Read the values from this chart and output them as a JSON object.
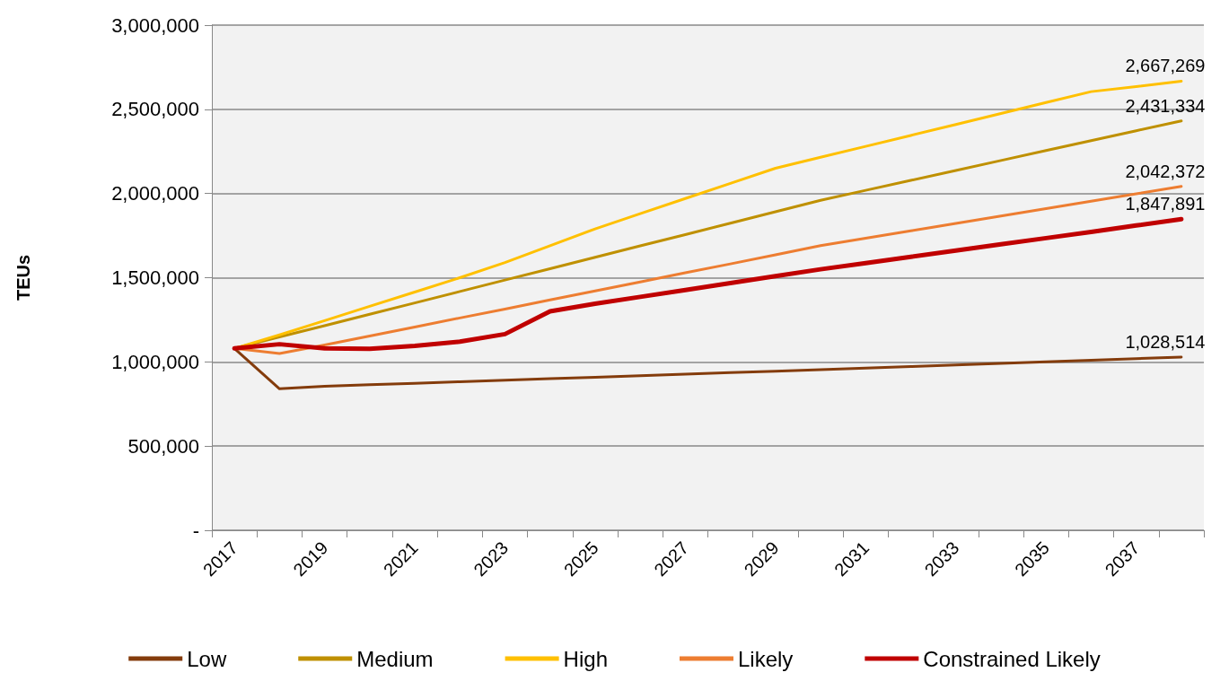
{
  "chart_data": {
    "type": "line",
    "ylabel": "TEUs",
    "categories": [
      "2017",
      null,
      "2019",
      null,
      "2021",
      null,
      "2023",
      null,
      "2025",
      null,
      "2027",
      null,
      "2029",
      null,
      "2031",
      null,
      "2033",
      null,
      "2035",
      null,
      "2037",
      null
    ],
    "series": [
      {
        "name": "Low",
        "color": "#843c0c",
        "values": [
          1080000,
          840000,
          855000,
          864000,
          873000,
          882000,
          891000,
          900000,
          909000,
          918000,
          927000,
          936000,
          945000,
          954000,
          963000,
          972000,
          982000,
          991000,
          1000000,
          1010000,
          1019000,
          1028514
        ],
        "value_labels": [
          null,
          null,
          null,
          null,
          null,
          null,
          null,
          null,
          null,
          null,
          null,
          null,
          null,
          null,
          null,
          null,
          null,
          null,
          null,
          null,
          null,
          "1,028,514"
        ]
      },
      {
        "name": "Medium",
        "color": "#bf9000",
        "values": [
          1080000,
          1148000,
          1215000,
          1283000,
          1350000,
          1418000,
          1486000,
          1553000,
          1621000,
          1689000,
          1756000,
          1824000,
          1892000,
          1960000,
          2019000,
          2078000,
          2137000,
          2196000,
          2255000,
          2314000,
          2373000,
          2431334
        ],
        "value_labels": [
          null,
          null,
          null,
          null,
          null,
          null,
          null,
          null,
          null,
          null,
          null,
          null,
          null,
          null,
          null,
          null,
          null,
          null,
          null,
          null,
          null,
          "2,431,334"
        ]
      },
      {
        "name": "High",
        "color": "#ffc000",
        "values": [
          1080000,
          1160000,
          1245000,
          1330000,
          1415000,
          1500000,
          1590000,
          1690000,
          1790000,
          1880000,
          1970000,
          2060000,
          2150000,
          2215000,
          2280000,
          2345000,
          2410000,
          2475000,
          2540000,
          2605000,
          2635000,
          2667269
        ],
        "value_labels": [
          null,
          null,
          null,
          null,
          null,
          null,
          null,
          null,
          null,
          null,
          null,
          null,
          null,
          null,
          null,
          null,
          null,
          null,
          null,
          null,
          null,
          "2,667,269"
        ]
      },
      {
        "name": "Likely",
        "color": "#ed7d31",
        "values": [
          1080000,
          1050000,
          1100000,
          1154000,
          1207000,
          1261000,
          1314000,
          1368000,
          1421000,
          1475000,
          1529000,
          1582000,
          1636000,
          1690000,
          1734000,
          1778000,
          1822000,
          1866000,
          1910000,
          1954000,
          1998000,
          2042372
        ],
        "value_labels": [
          null,
          null,
          null,
          null,
          null,
          null,
          null,
          null,
          null,
          null,
          null,
          null,
          null,
          null,
          null,
          null,
          null,
          null,
          null,
          null,
          null,
          "2,042,372"
        ]
      },
      {
        "name": "Constrained Likely",
        "color": "#c00000",
        "values": [
          1080000,
          1105000,
          1080000,
          1078000,
          1095000,
          1120000,
          1165000,
          1300000,
          1345000,
          1386000,
          1427000,
          1468000,
          1509000,
          1550000,
          1587000,
          1624000,
          1661000,
          1698000,
          1735000,
          1772000,
          1810000,
          1847891
        ],
        "value_labels": [
          null,
          null,
          null,
          null,
          null,
          null,
          null,
          null,
          null,
          null,
          null,
          null,
          null,
          null,
          null,
          null,
          null,
          null,
          null,
          null,
          null,
          "1,847,891"
        ]
      }
    ],
    "ylim": [
      0,
      3000000
    ],
    "yticks": [
      {
        "value": 0,
        "label": "-"
      },
      {
        "value": 500000,
        "label": "500,000"
      },
      {
        "value": 1000000,
        "label": "1,000,000"
      },
      {
        "value": 1500000,
        "label": "1,500,000"
      },
      {
        "value": 2000000,
        "label": "2,000,000"
      },
      {
        "value": 2500000,
        "label": "2,500,000"
      },
      {
        "value": 3000000,
        "label": "3,000,000"
      }
    ],
    "grid": "y",
    "legend": "bottom",
    "marker": "none",
    "line_style": "solid"
  }
}
